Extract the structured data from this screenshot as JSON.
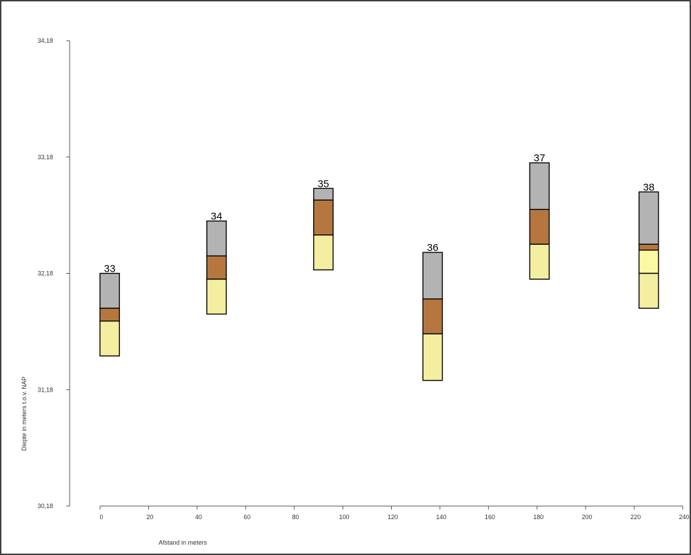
{
  "chart_data": {
    "type": "bar",
    "title": "",
    "xlabel": "Afstand in meters",
    "ylabel": "Diepte in meters t.o.v. NAP",
    "xlim": [
      0,
      240
    ],
    "ylim": [
      30.18,
      34.18
    ],
    "x_ticks": [
      0,
      20,
      40,
      60,
      80,
      100,
      120,
      140,
      160,
      180,
      200,
      220,
      240
    ],
    "x_tick_labels": [
      "0",
      "20",
      "40",
      "60",
      "80",
      "100",
      "120",
      "140",
      "160",
      "180",
      "200",
      "220",
      "240"
    ],
    "y_ticks": [
      30.18,
      31.18,
      32.18,
      33.18,
      34.18
    ],
    "y_tick_labels": [
      "30,18",
      "31,18",
      "32,18",
      "33,18",
      "34,18"
    ],
    "grid": false,
    "colors": {
      "grey_layer": "#b3b3b3",
      "brown_layer": "#b5773f",
      "pale_yellow_layer": "#f3eea0",
      "bright_yellow_layer": "#fbf9a2",
      "outline": "#000000"
    },
    "borings": [
      {
        "label": "33",
        "x_from": 0,
        "x_to": 8,
        "layers": [
          {
            "color": "grey_layer",
            "top": 32.18,
            "bottom": 31.88
          },
          {
            "color": "brown_layer",
            "top": 31.88,
            "bottom": 31.77
          },
          {
            "color": "pale_yellow_layer",
            "top": 31.77,
            "bottom": 31.47
          }
        ]
      },
      {
        "label": "34",
        "x_from": 44,
        "x_to": 52,
        "layers": [
          {
            "color": "grey_layer",
            "top": 32.63,
            "bottom": 32.33
          },
          {
            "color": "brown_layer",
            "top": 32.33,
            "bottom": 32.13
          },
          {
            "color": "pale_yellow_layer",
            "top": 32.13,
            "bottom": 31.83
          }
        ]
      },
      {
        "label": "35",
        "x_from": 88,
        "x_to": 96,
        "layers": [
          {
            "color": "grey_layer",
            "top": 32.91,
            "bottom": 32.81
          },
          {
            "color": "brown_layer",
            "top": 32.81,
            "bottom": 32.51
          },
          {
            "color": "pale_yellow_layer",
            "top": 32.51,
            "bottom": 32.21
          }
        ]
      },
      {
        "label": "36",
        "x_from": 133,
        "x_to": 141,
        "layers": [
          {
            "color": "grey_layer",
            "top": 32.36,
            "bottom": 31.96
          },
          {
            "color": "brown_layer",
            "top": 31.96,
            "bottom": 31.66
          },
          {
            "color": "pale_yellow_layer",
            "top": 31.66,
            "bottom": 31.26
          }
        ]
      },
      {
        "label": "37",
        "x_from": 177,
        "x_to": 185,
        "layers": [
          {
            "color": "grey_layer",
            "top": 33.13,
            "bottom": 32.73
          },
          {
            "color": "brown_layer",
            "top": 32.73,
            "bottom": 32.43
          },
          {
            "color": "pale_yellow_layer",
            "top": 32.43,
            "bottom": 32.13
          }
        ]
      },
      {
        "label": "38",
        "x_from": 222,
        "x_to": 230,
        "layers": [
          {
            "color": "grey_layer",
            "top": 32.88,
            "bottom": 32.43
          },
          {
            "color": "brown_layer",
            "top": 32.43,
            "bottom": 32.38
          },
          {
            "color": "bright_yellow_layer",
            "top": 32.38,
            "bottom": 32.18
          },
          {
            "color": "pale_yellow_layer",
            "top": 32.18,
            "bottom": 31.88
          }
        ]
      }
    ]
  }
}
